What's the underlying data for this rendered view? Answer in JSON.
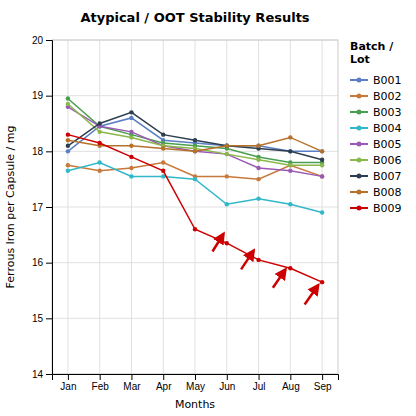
{
  "chart_data": {
    "type": "line",
    "title": "Atypical / OOT Stability Results",
    "x_label": "Months",
    "y_label": "Ferrous Iron per Capsule / mg",
    "legend_title": "Batch /\nLot",
    "categories": [
      "Jan",
      "Feb",
      "Mar",
      "Apr",
      "May",
      "Jun",
      "Jul",
      "Aug",
      "Sep"
    ],
    "series": [
      {
        "name": "B001",
        "color": "#5b7fc4",
        "values": [
          18.0,
          18.45,
          18.6,
          18.2,
          18.15,
          18.1,
          18.1,
          18.0,
          18.0
        ]
      },
      {
        "name": "B002",
        "color": "#c8783a",
        "values": [
          17.75,
          17.65,
          17.7,
          17.8,
          17.55,
          17.55,
          17.5,
          17.75,
          17.55
        ]
      },
      {
        "name": "B003",
        "color": "#4a9e50",
        "values": [
          18.95,
          18.45,
          18.3,
          18.15,
          18.1,
          18.05,
          17.9,
          17.8,
          17.8
        ]
      },
      {
        "name": "B004",
        "color": "#30b8c8",
        "values": [
          17.65,
          17.8,
          17.55,
          17.55,
          17.5,
          17.05,
          17.15,
          17.05,
          16.9
        ]
      },
      {
        "name": "B005",
        "color": "#9b59b6",
        "values": [
          18.8,
          18.45,
          18.35,
          18.1,
          18.0,
          17.95,
          17.7,
          17.65,
          17.55
        ]
      },
      {
        "name": "B006",
        "color": "#8ab84a",
        "values": [
          18.85,
          18.35,
          18.25,
          18.1,
          18.05,
          17.95,
          17.85,
          17.75,
          17.75
        ]
      },
      {
        "name": "B007",
        "color": "#2c3e50",
        "values": [
          18.1,
          18.5,
          18.7,
          18.3,
          18.2,
          18.1,
          18.05,
          18.0,
          17.85
        ]
      },
      {
        "name": "B008",
        "color": "#b5722a",
        "values": [
          18.2,
          18.1,
          18.1,
          18.05,
          18.0,
          18.1,
          18.1,
          18.25,
          18.0
        ]
      },
      {
        "name": "B009",
        "color": "#cc0000",
        "values": [
          18.3,
          18.15,
          17.9,
          17.65,
          16.6,
          16.35,
          16.05,
          15.9,
          15.65
        ]
      }
    ],
    "annotations": [
      {
        "type": "arrow",
        "color": "#cc0000",
        "x": 4.55,
        "y": 16.2,
        "x_end": 4.9,
        "y_end": 16.52
      },
      {
        "type": "arrow",
        "color": "#cc0000",
        "x": 5.45,
        "y": 15.88,
        "x_end": 5.85,
        "y_end": 16.22
      },
      {
        "type": "arrow",
        "color": "#cc0000",
        "x": 6.45,
        "y": 15.55,
        "x_end": 6.85,
        "y_end": 15.88
      },
      {
        "type": "arrow",
        "color": "#cc0000",
        "x": 7.45,
        "y": 15.25,
        "x_end": 7.88,
        "y_end": 15.6
      }
    ],
    "ylim": [
      14,
      20
    ],
    "yticks": [
      14,
      15,
      16,
      17,
      18,
      19,
      20
    ],
    "grid": true,
    "legend": "right",
    "marker": "circle"
  }
}
